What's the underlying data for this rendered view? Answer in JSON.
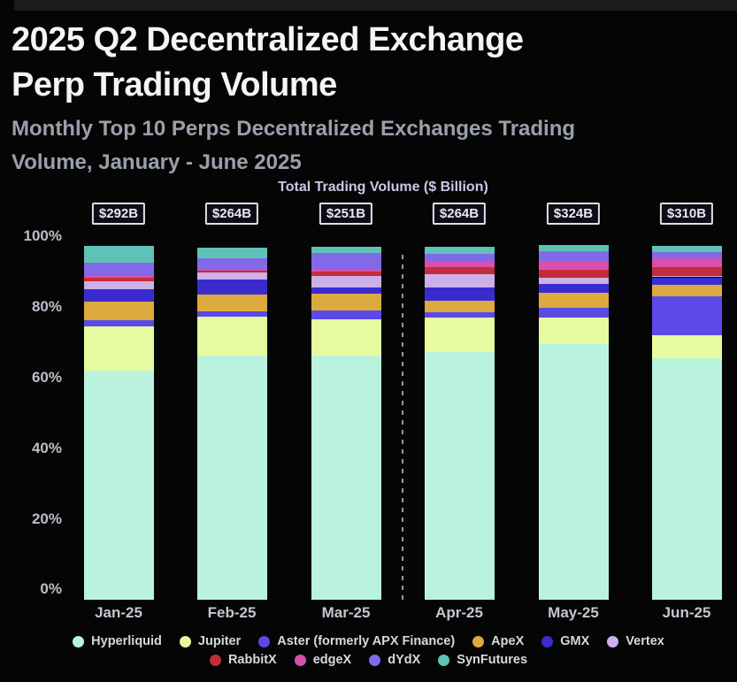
{
  "page": {
    "title_line1": "2025 Q2 Decentralized Exchange",
    "title_line2": "Perp Trading Volume",
    "subtitle_line1": "Monthly Top 10 Perps Decentralized Exchanges Trading",
    "subtitle_line2": "Volume, January - June 2025"
  },
  "chart_data": {
    "type": "bar",
    "stacking": "percent",
    "title": "Total Trading Volume ($ Billion)",
    "categories": [
      "Jan-25",
      "Feb-25",
      "Mar-25",
      "Apr-25",
      "May-25",
      "Jun-25"
    ],
    "totals": [
      "$292B",
      "$264B",
      "$251B",
      "$264B",
      "$324B",
      "$310B"
    ],
    "y_ticks": [
      "100%",
      "80%",
      "60%",
      "40%",
      "20%",
      "0%"
    ],
    "ylim": [
      0,
      100
    ],
    "grid": false,
    "legend_position": "bottom",
    "divider_between": [
      "Mar-25",
      "Apr-25"
    ],
    "series": [
      {
        "name": "Hyperliquid",
        "color": "#b9f3de",
        "values": [
          63.1,
          67.4,
          67.4,
          68.4,
          70.4,
          66.6
        ]
      },
      {
        "name": "Jupiter",
        "color": "#e6fa9f",
        "values": [
          12.3,
          10.6,
          10.0,
          9.4,
          7.5,
          6.3
        ]
      },
      {
        "name": "Aster (formerly APX Finance)",
        "color": "#5c49e6",
        "values": [
          1.7,
          1.5,
          2.4,
          1.4,
          2.7,
          10.8
        ]
      },
      {
        "name": "ApeX",
        "color": "#dcaa3f",
        "values": [
          5.1,
          4.6,
          4.6,
          3.3,
          4.0,
          3.1
        ]
      },
      {
        "name": "GMX",
        "color": "#3b2bcf",
        "values": [
          3.3,
          4.2,
          1.8,
          3.6,
          2.5,
          2.1
        ]
      },
      {
        "name": "Vertex",
        "color": "#ccb0e9",
        "values": [
          2.3,
          1.9,
          3.1,
          3.7,
          1.8,
          0.4
        ]
      },
      {
        "name": "RabbitX",
        "color": "#c32c3b",
        "values": [
          1.0,
          0.5,
          1.3,
          1.9,
          2.1,
          2.3
        ]
      },
      {
        "name": "edgeX",
        "color": "#d94fae",
        "values": [
          0.4,
          0.3,
          0.5,
          1.5,
          2.5,
          2.5
        ]
      },
      {
        "name": "dYdX",
        "color": "#8169e8",
        "values": [
          3.7,
          3.2,
          4.5,
          2.1,
          2.5,
          1.7
        ]
      },
      {
        "name": "SynFutures",
        "color": "#5fc2b7",
        "values": [
          4.6,
          2.9,
          1.8,
          2.0,
          1.8,
          1.8
        ]
      }
    ],
    "legend_rows": [
      [
        "Hyperliquid",
        "Jupiter",
        "Aster (formerly APX Finance)",
        "ApeX",
        "GMX",
        "Vertex"
      ],
      [
        "RabbitX",
        "edgeX",
        "dYdX",
        "SynFutures"
      ]
    ]
  }
}
